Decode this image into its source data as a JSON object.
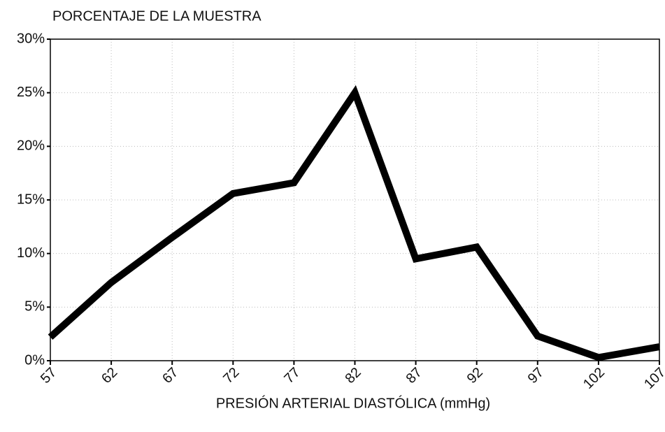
{
  "chart_data": {
    "type": "line",
    "title": "PORCENTAJE DE LA MUESTRA",
    "x_label": "PRESIÓN ARTERIAL DIASTÓLICA (mmHg)",
    "x": [
      57,
      62,
      67,
      72,
      77,
      82,
      87,
      92,
      97,
      102,
      107
    ],
    "series": [
      {
        "name": "Porcentaje",
        "color": "#000000",
        "values": [
          2.2,
          7.3,
          11.5,
          15.6,
          16.6,
          25,
          9.5,
          10.6,
          2.3,
          0.3,
          1.3
        ]
      }
    ],
    "xlim": [
      57,
      107
    ],
    "xticks": [
      57,
      62,
      67,
      72,
      77,
      82,
      87,
      92,
      97,
      102,
      107
    ],
    "ylim": [
      0,
      30
    ],
    "yticks": [
      {
        "value": 0,
        "label": "0%"
      },
      {
        "value": 5,
        "label": "5%"
      },
      {
        "value": 10,
        "label": "10%"
      },
      {
        "value": 15,
        "label": "15%"
      },
      {
        "value": 20,
        "label": "20%"
      },
      {
        "value": 25,
        "label": "25%"
      },
      {
        "value": 30,
        "label": "30%"
      }
    ],
    "grid": true
  }
}
